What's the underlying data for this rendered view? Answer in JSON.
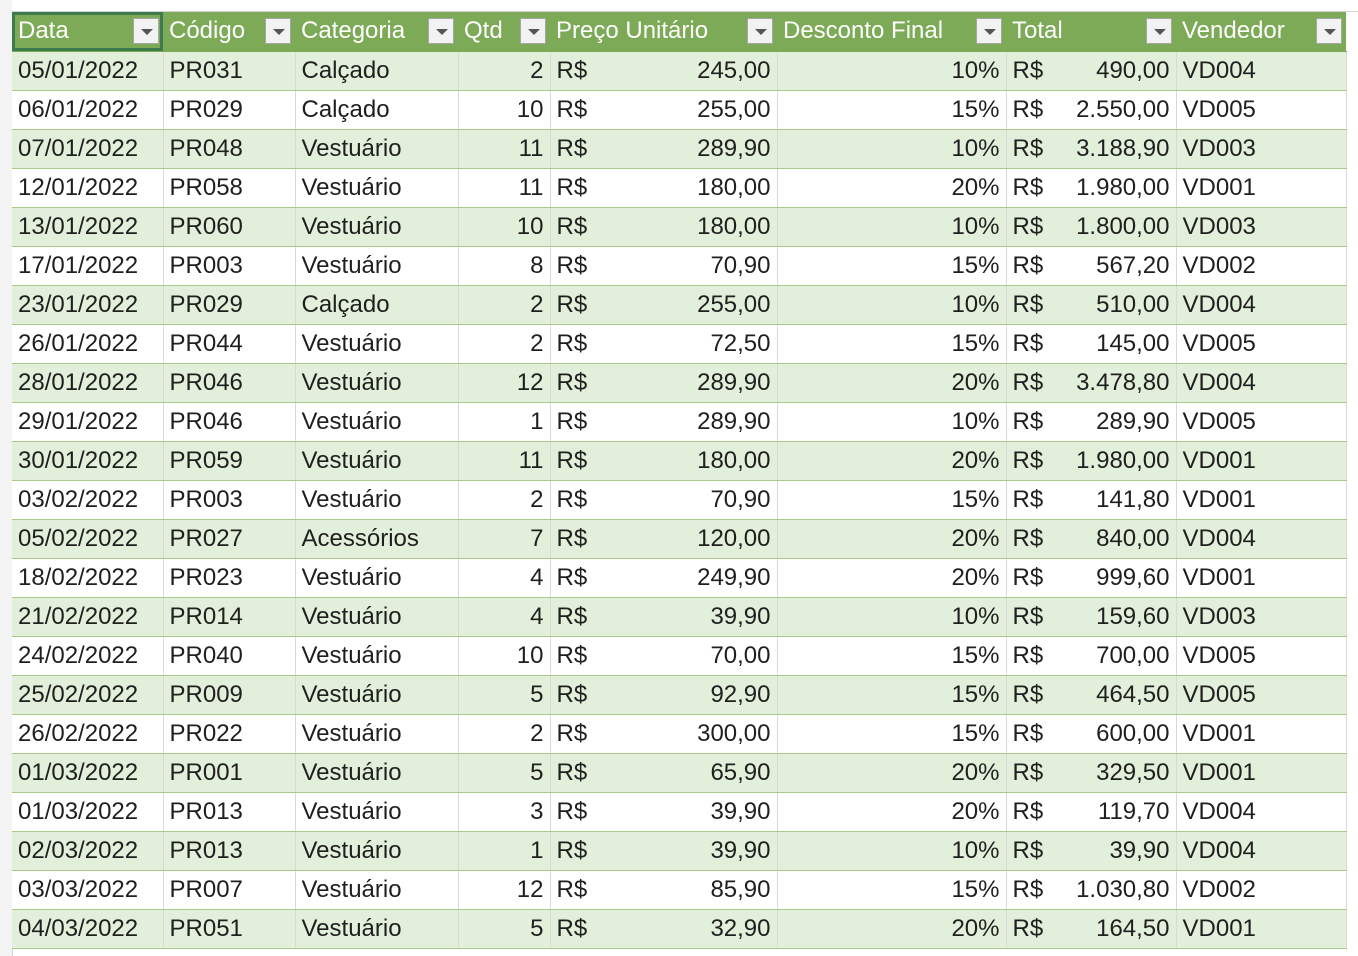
{
  "table": {
    "headers": [
      "Data",
      "Código",
      "Categoria",
      "Qtd",
      "Preço Unitário",
      "Desconto Final",
      "Total",
      "Vendedor"
    ],
    "currency": "R$",
    "rows": [
      [
        "05/01/2022",
        "PR031",
        "Calçado",
        "2",
        "245,00",
        "10%",
        "490,00",
        "VD004"
      ],
      [
        "06/01/2022",
        "PR029",
        "Calçado",
        "10",
        "255,00",
        "15%",
        "2.550,00",
        "VD005"
      ],
      [
        "07/01/2022",
        "PR048",
        "Vestuário",
        "11",
        "289,90",
        "10%",
        "3.188,90",
        "VD003"
      ],
      [
        "12/01/2022",
        "PR058",
        "Vestuário",
        "11",
        "180,00",
        "20%",
        "1.980,00",
        "VD001"
      ],
      [
        "13/01/2022",
        "PR060",
        "Vestuário",
        "10",
        "180,00",
        "10%",
        "1.800,00",
        "VD003"
      ],
      [
        "17/01/2022",
        "PR003",
        "Vestuário",
        "8",
        "70,90",
        "15%",
        "567,20",
        "VD002"
      ],
      [
        "23/01/2022",
        "PR029",
        "Calçado",
        "2",
        "255,00",
        "10%",
        "510,00",
        "VD004"
      ],
      [
        "26/01/2022",
        "PR044",
        "Vestuário",
        "2",
        "72,50",
        "15%",
        "145,00",
        "VD005"
      ],
      [
        "28/01/2022",
        "PR046",
        "Vestuário",
        "12",
        "289,90",
        "20%",
        "3.478,80",
        "VD004"
      ],
      [
        "29/01/2022",
        "PR046",
        "Vestuário",
        "1",
        "289,90",
        "10%",
        "289,90",
        "VD005"
      ],
      [
        "30/01/2022",
        "PR059",
        "Vestuário",
        "11",
        "180,00",
        "20%",
        "1.980,00",
        "VD001"
      ],
      [
        "03/02/2022",
        "PR003",
        "Vestuário",
        "2",
        "70,90",
        "15%",
        "141,80",
        "VD001"
      ],
      [
        "05/02/2022",
        "PR027",
        "Acessórios",
        "7",
        "120,00",
        "20%",
        "840,00",
        "VD004"
      ],
      [
        "18/02/2022",
        "PR023",
        "Vestuário",
        "4",
        "249,90",
        "20%",
        "999,60",
        "VD001"
      ],
      [
        "21/02/2022",
        "PR014",
        "Vestuário",
        "4",
        "39,90",
        "10%",
        "159,60",
        "VD003"
      ],
      [
        "24/02/2022",
        "PR040",
        "Vestuário",
        "10",
        "70,00",
        "15%",
        "700,00",
        "VD005"
      ],
      [
        "25/02/2022",
        "PR009",
        "Vestuário",
        "5",
        "92,90",
        "15%",
        "464,50",
        "VD005"
      ],
      [
        "26/02/2022",
        "PR022",
        "Vestuário",
        "2",
        "300,00",
        "15%",
        "600,00",
        "VD001"
      ],
      [
        "01/03/2022",
        "PR001",
        "Vestuário",
        "5",
        "65,90",
        "20%",
        "329,50",
        "VD001"
      ],
      [
        "01/03/2022",
        "PR013",
        "Vestuário",
        "3",
        "39,90",
        "20%",
        "119,70",
        "VD004"
      ],
      [
        "02/03/2022",
        "PR013",
        "Vestuário",
        "1",
        "39,90",
        "10%",
        "39,90",
        "VD004"
      ],
      [
        "03/03/2022",
        "PR007",
        "Vestuário",
        "12",
        "85,90",
        "15%",
        "1.030,80",
        "VD002"
      ],
      [
        "04/03/2022",
        "PR051",
        "Vestuário",
        "5",
        "32,90",
        "20%",
        "164,50",
        "VD001"
      ]
    ]
  }
}
